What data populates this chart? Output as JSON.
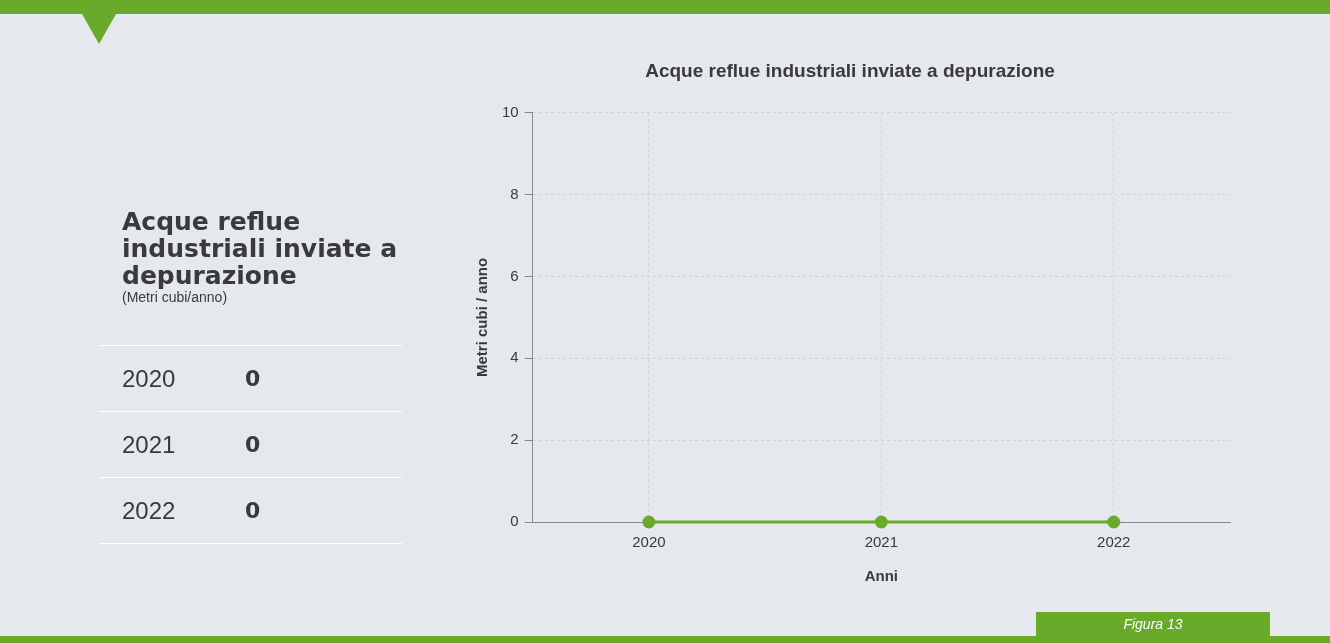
{
  "chart_data": [
    {
      "type": "other",
      "title": "Acque reflue industriali inviate a depurazione",
      "subtitle": "(Metri cubi/anno)",
      "categories": [
        "2020",
        "2021",
        "2022"
      ],
      "values": [
        0,
        0,
        0
      ],
      "data_labels": true
    },
    {
      "type": "line",
      "title": "Acque reflue industriali inviate a depurazione",
      "xlabel": "Anni",
      "ylabel": "Metri cubi / anno",
      "categories": [
        "2020",
        "2021",
        "2022"
      ],
      "series": [
        {
          "color": "#6aaa2a",
          "values": [
            0,
            0,
            0
          ]
        }
      ],
      "ylim": [
        0,
        10
      ],
      "yticks": [
        0,
        2,
        4,
        6,
        8,
        10
      ],
      "grid": true,
      "legend": false,
      "marker": "circle",
      "line_style": "solid",
      "annotations": [
        "Figura 13"
      ]
    }
  ]
}
